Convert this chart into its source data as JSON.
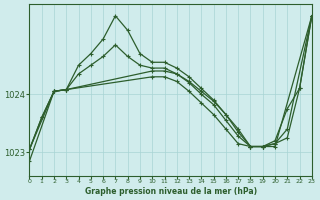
{
  "background_color": "#d0ecec",
  "grid_color": "#a8d4d4",
  "line_color": "#2d5e2d",
  "xlabel": "Graphe pression niveau de la mer (hPa)",
  "xlim": [
    0,
    23
  ],
  "ylim": [
    1022.6,
    1025.55
  ],
  "yticks": [
    1023,
    1024
  ],
  "xticks": [
    0,
    1,
    2,
    3,
    4,
    5,
    6,
    7,
    8,
    9,
    10,
    11,
    12,
    13,
    14,
    15,
    16,
    17,
    18,
    19,
    20,
    21,
    22,
    23
  ],
  "series": [
    {
      "x": [
        0,
        1,
        2,
        3,
        4,
        5,
        6,
        7,
        8,
        9,
        10,
        11,
        12,
        13,
        14,
        15,
        16,
        17,
        18,
        19,
        20,
        21,
        22,
        23
      ],
      "y": [
        1023.05,
        1023.6,
        1024.05,
        1024.08,
        1024.5,
        1024.7,
        1024.95,
        1025.35,
        1025.1,
        1024.7,
        1024.55,
        1024.55,
        1024.45,
        1024.3,
        1024.1,
        1023.9,
        1023.65,
        1023.35,
        1023.1,
        1023.1,
        1023.15,
        1023.25,
        1024.1,
        1025.35
      ]
    },
    {
      "x": [
        0,
        1,
        2,
        3,
        4,
        5,
        6,
        7,
        8,
        9,
        10,
        11,
        12,
        13,
        14,
        15,
        16,
        17,
        18,
        19,
        20,
        21,
        22,
        23
      ],
      "y": [
        1023.05,
        1023.6,
        1024.05,
        1024.08,
        1024.35,
        1024.5,
        1024.65,
        1024.85,
        1024.65,
        1024.5,
        1024.45,
        1024.45,
        1024.35,
        1024.2,
        1024.0,
        1023.82,
        1023.55,
        1023.28,
        1023.1,
        1023.1,
        1023.2,
        1023.75,
        1024.1,
        1025.35
      ]
    },
    {
      "x": [
        0,
        2,
        3,
        10,
        11,
        12,
        13,
        14,
        15,
        16,
        17,
        18,
        19,
        20,
        21,
        23
      ],
      "y": [
        1023.05,
        1024.05,
        1024.08,
        1024.4,
        1024.4,
        1024.35,
        1024.22,
        1024.05,
        1023.88,
        1023.65,
        1023.4,
        1023.1,
        1023.1,
        1023.15,
        1023.4,
        1025.35
      ]
    },
    {
      "x": [
        0,
        2,
        3,
        10,
        11,
        12,
        13,
        14,
        15,
        16,
        17,
        18,
        19,
        20,
        23
      ],
      "y": [
        1022.85,
        1024.05,
        1024.08,
        1024.3,
        1024.3,
        1024.22,
        1024.05,
        1023.85,
        1023.65,
        1023.4,
        1023.15,
        1023.1,
        1023.1,
        1023.1,
        1025.35
      ]
    }
  ]
}
